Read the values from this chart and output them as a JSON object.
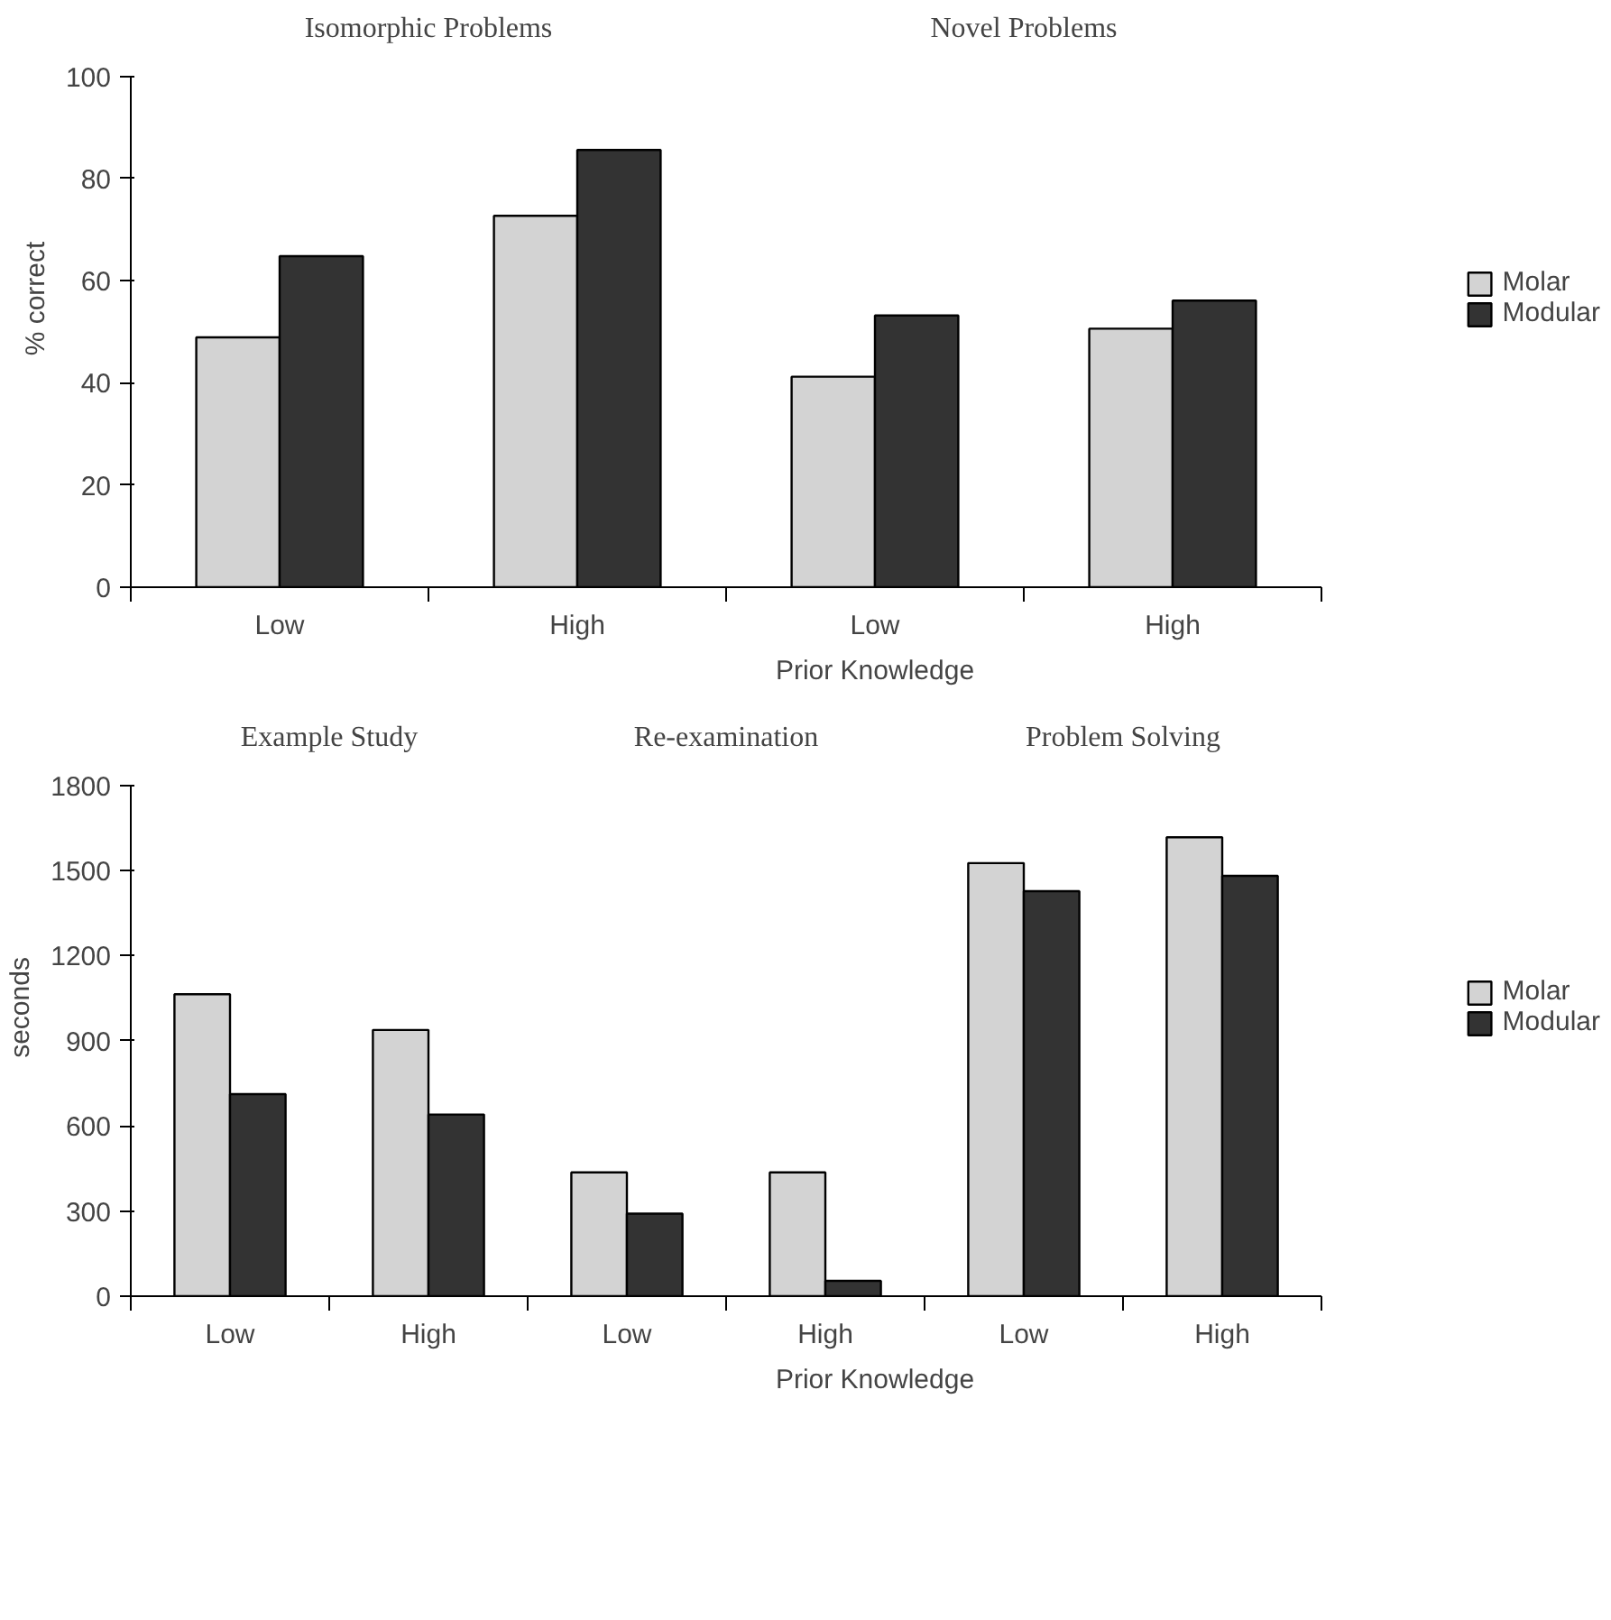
{
  "chart_data": [
    {
      "type": "bar",
      "categories": [
        "Low",
        "High",
        "Low",
        "High"
      ],
      "xlabel": "Prior Knowledge",
      "ylabel": "% correct",
      "ylim": [
        0,
        100
      ],
      "yticks": [
        0,
        20,
        40,
        60,
        80,
        100
      ],
      "legend": "right",
      "grid": false,
      "annotations": [
        "Isomorphic Problems",
        "Novel Problems"
      ],
      "series": [
        {
          "name": "Molar",
          "color": "#d3d3d3",
          "values": [
            48.9,
            72.7,
            41.2,
            50.6
          ]
        },
        {
          "name": "Modular",
          "color": "#333333",
          "values": [
            64.8,
            85.6,
            53.2,
            56.1
          ]
        }
      ]
    },
    {
      "type": "bar",
      "categories": [
        "Low",
        "High",
        "Low",
        "High",
        "Low",
        "High"
      ],
      "xlabel": "Prior Knowledge",
      "ylabel": "seconds",
      "ylim": [
        0,
        1800
      ],
      "yticks": [
        0,
        300,
        600,
        900,
        1200,
        1500,
        1800
      ],
      "legend": "right",
      "grid": false,
      "annotations": [
        "Example Study",
        "Re-examination",
        "Problem Solving"
      ],
      "series": [
        {
          "name": "Molar",
          "color": "#d3d3d3",
          "values": [
            1064,
            938,
            436,
            436,
            1526,
            1617
          ]
        },
        {
          "name": "Modular",
          "color": "#333333",
          "values": [
            712,
            640,
            291,
            54,
            1427,
            1481
          ]
        }
      ]
    }
  ]
}
